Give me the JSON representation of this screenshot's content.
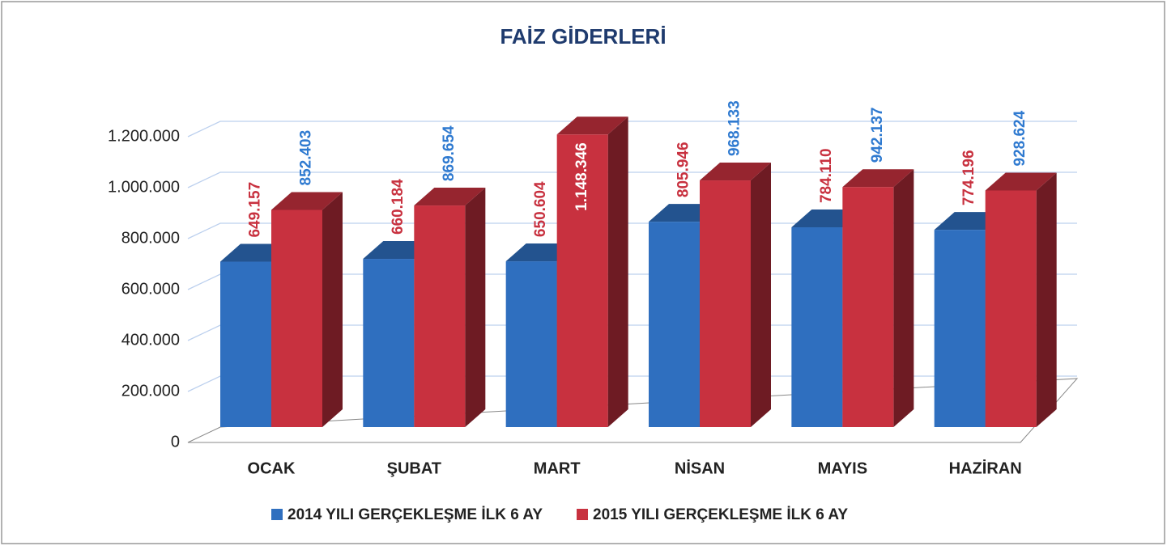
{
  "chart_data": {
    "type": "bar3d",
    "title": "FAİZ GİDERLERİ",
    "categories": [
      "OCAK",
      "ŞUBAT",
      "MART",
      "NİSAN",
      "MAYIS",
      "HAZİRAN"
    ],
    "series": [
      {
        "name": "2014 YILI GERÇEKLEŞME İLK 6 AY",
        "color": "#2f6fbf",
        "values": [
          649157,
          660184,
          650604,
          805946,
          784110,
          774196
        ],
        "value_labels": [
          "649.157",
          "660.184",
          "650.604",
          "805.946",
          "784.110",
          "774.196"
        ]
      },
      {
        "name": "2015 YILI GERÇEKLEŞME İLK 6 AY",
        "color": "#c8313f",
        "values": [
          852403,
          869654,
          1148346,
          968133,
          942137,
          928624
        ],
        "value_labels": [
          "852.403",
          "869.654",
          "1.148.346",
          "968.133",
          "942.137",
          "928.624"
        ]
      }
    ],
    "ylim": [
      0,
      1200000
    ],
    "yticks": [
      0,
      {
        "value": 200000,
        "label": "200.000"
      },
      {
        "value": 400000,
        "label": "400.000"
      },
      {
        "value": 600000,
        "label": "600.000"
      },
      {
        "value": 800000,
        "label": "800.000"
      },
      {
        "value": 1000000,
        "label": "1.000.000"
      },
      {
        "value": 1200000,
        "label": "1.200.000"
      }
    ],
    "grid": true,
    "legend": "bottom"
  }
}
